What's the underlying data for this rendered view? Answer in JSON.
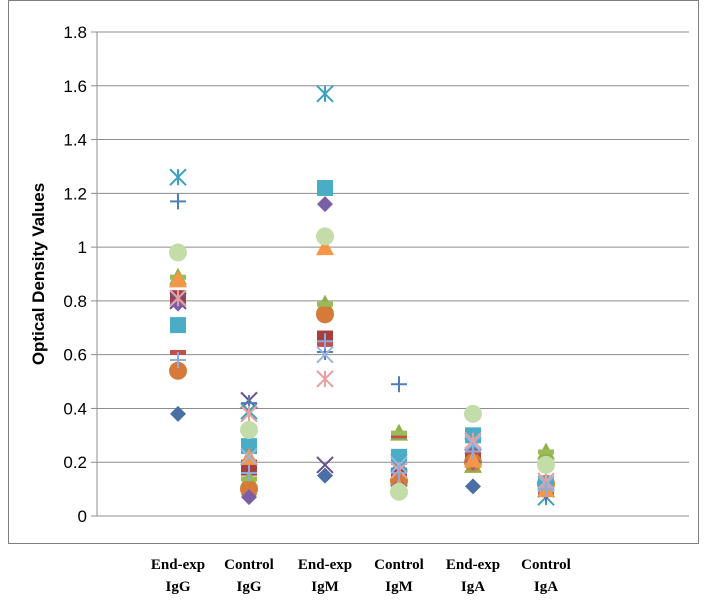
{
  "chart_data": {
    "type": "scatter",
    "title": "",
    "xlabel": "",
    "ylabel": "Optical Density Values",
    "ylim": [
      0,
      1.8
    ],
    "yticks": [
      "0",
      "0.2",
      "0.4",
      "0.6",
      "0.8",
      "1",
      "1.2",
      "1.4",
      "1.6",
      "1.8"
    ],
    "grid": "horizontal",
    "legend": "none",
    "categories": [
      {
        "line1": "End-exp",
        "line2": "IgG"
      },
      {
        "line1": "Control",
        "line2": "IgG"
      },
      {
        "line1": "End-exp",
        "line2": "IgM"
      },
      {
        "line1": "Control",
        "line2": "IgM"
      },
      {
        "line1": "End-exp",
        "line2": "IgA"
      },
      {
        "line1": "Control",
        "line2": "IgA"
      }
    ],
    "series": [
      {
        "marker": "diamond",
        "color": "#4a6fa5",
        "values": [
          0.38,
          0.08,
          0.15,
          0.12,
          0.11,
          0.09
        ]
      },
      {
        "marker": "square",
        "color": "#a4403d",
        "values": [
          0.81,
          0.18,
          0.66,
          0.15,
          0.22,
          0.11
        ]
      },
      {
        "marker": "triangle",
        "color": "#8fb04a",
        "values": [
          0.89,
          0.14,
          0.79,
          0.31,
          0.19,
          0.24
        ]
      },
      {
        "marker": "x",
        "color": "#6b4f8c",
        "values": [
          0.8,
          0.43,
          0.19,
          0.14,
          0.22,
          0.1
        ]
      },
      {
        "marker": "asterisk",
        "color": "#3aa1c0",
        "values": [
          1.26,
          0.39,
          1.57,
          0.2,
          0.26,
          0.07
        ]
      },
      {
        "marker": "circle",
        "color": "#d67a3a",
        "values": [
          0.54,
          0.1,
          0.75,
          0.13,
          0.2,
          0.12
        ]
      },
      {
        "marker": "plus",
        "color": "#4f7fb8",
        "values": [
          1.17,
          0.42,
          0.61,
          0.49,
          0.25,
          0.08
        ]
      },
      {
        "marker": "dash",
        "color": "#c0504d",
        "values": [
          0.61,
          0.2,
          0.64,
          0.3,
          0.24,
          0.14
        ]
      },
      {
        "marker": "dash",
        "color": "#9bbb59",
        "values": [
          0.89,
          0.14,
          0.79,
          0.31,
          0.19,
          0.24
        ]
      },
      {
        "marker": "diamond",
        "color": "#7b5fa6",
        "values": [
          0.79,
          0.07,
          1.16,
          0.11,
          0.2,
          0.09
        ]
      },
      {
        "marker": "square",
        "color": "#4bacc6",
        "values": [
          0.71,
          0.26,
          1.22,
          0.22,
          0.3,
          0.12
        ]
      },
      {
        "marker": "triangle",
        "color": "#f79646",
        "values": [
          0.88,
          0.22,
          1.0,
          0.11,
          0.21,
          0.1
        ]
      },
      {
        "marker": "x",
        "color": "#9ab6dc",
        "values": [
          0.81,
          0.22,
          0.6,
          0.19,
          0.27,
          0.12
        ]
      },
      {
        "marker": "asterisk",
        "color": "#e6a0a0",
        "values": [
          0.81,
          0.38,
          0.51,
          0.17,
          0.28,
          0.13
        ]
      },
      {
        "marker": "circle",
        "color": "#c4dca8",
        "values": [
          0.98,
          0.32,
          1.04,
          0.09,
          0.38,
          0.19
        ]
      },
      {
        "marker": "plus",
        "color": "#8faadc",
        "values": [
          0.58,
          0.16,
          0.65,
          0.16,
          0.24,
          0.1
        ]
      }
    ]
  }
}
